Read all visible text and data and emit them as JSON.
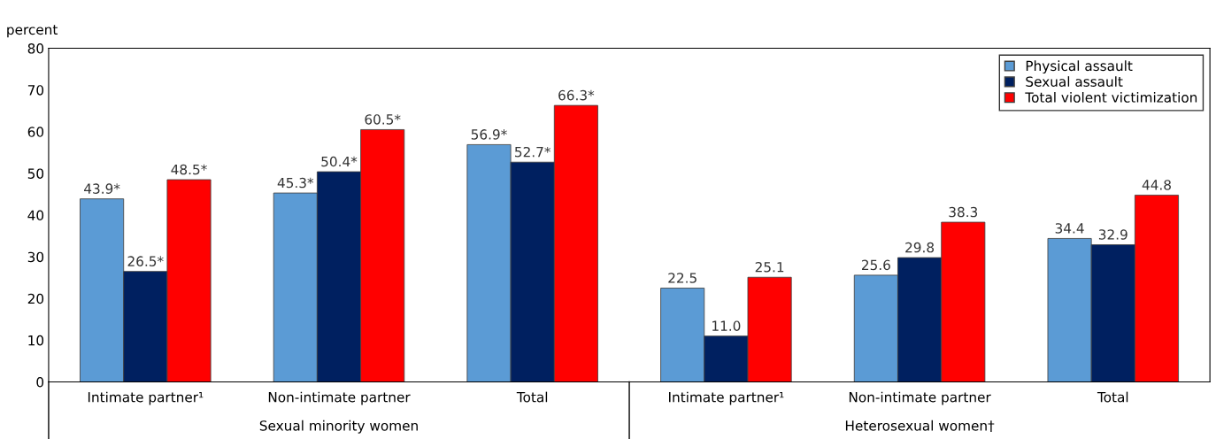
{
  "chart_data": {
    "type": "bar",
    "ylabel": "percent",
    "categories": [
      "Intimate partner¹",
      "Non-intimate partner",
      "Total",
      "Intimate partner¹",
      "Non-intimate partner",
      "Total"
    ],
    "series": [
      {
        "name": "Physical assault",
        "color": "#5b9bd5",
        "values": [
          43.9,
          45.3,
          56.9,
          22.5,
          25.6,
          34.4
        ],
        "value_labels": [
          "43.9*",
          "45.3*",
          "56.9*",
          "22.5",
          "25.6",
          "34.4"
        ]
      },
      {
        "name": "Sexual assault",
        "color": "#002060",
        "values": [
          26.5,
          50.4,
          52.7,
          11.0,
          29.8,
          32.9
        ],
        "value_labels": [
          "26.5*",
          "50.4*",
          "52.7*",
          "11.0",
          "29.8",
          "32.9"
        ]
      },
      {
        "name": "Total violent victimization",
        "color": "#ff0000",
        "values": [
          48.5,
          60.5,
          66.3,
          25.1,
          38.3,
          44.8
        ],
        "value_labels": [
          "48.5*",
          "60.5*",
          "66.3*",
          "25.1",
          "38.3",
          "44.8"
        ]
      }
    ],
    "annotations": [
      "Sexual minority women",
      "Heterosexual women†"
    ],
    "ylim": [
      0,
      80
    ],
    "yticks": [
      0,
      10,
      20,
      30,
      40,
      50,
      60,
      70,
      80
    ],
    "legend": "top right",
    "grid": false
  }
}
